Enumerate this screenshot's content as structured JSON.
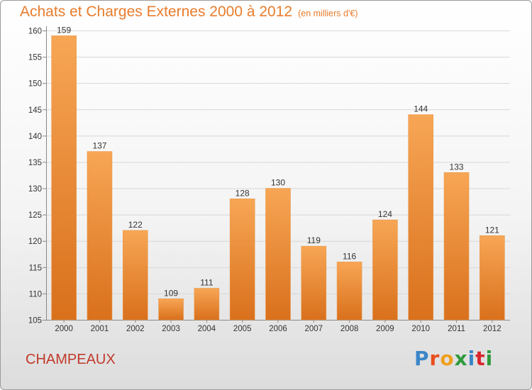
{
  "title": "Achats et Charges Externes 2000 à 2012",
  "subtitle": "(en milliers d'€)",
  "location": "CHAMPEAUX",
  "logo": {
    "text": "Proxiti",
    "colors": [
      "#3a86c8",
      "#e84e1b",
      "#f0a020",
      "#2e9a3c",
      "#3a86c8",
      "#d9262c",
      "#2e9a3c"
    ]
  },
  "chart_data": {
    "type": "bar",
    "title": "Achats et Charges Externes 2000 à 2012",
    "subtitle": "(en milliers d'€)",
    "categories": [
      "2000",
      "2001",
      "2002",
      "2003",
      "2004",
      "2005",
      "2006",
      "2007",
      "2008",
      "2009",
      "2010",
      "2011",
      "2012"
    ],
    "values": [
      159,
      137,
      122,
      109,
      111,
      128,
      130,
      119,
      116,
      124,
      144,
      133,
      121
    ],
    "ylim": [
      105,
      160
    ],
    "yticks": [
      105,
      110,
      115,
      120,
      125,
      130,
      135,
      140,
      145,
      150,
      155,
      160
    ],
    "grid": true,
    "bar_color_top": "#f7a655",
    "bar_color_bottom": "#d9701c"
  }
}
